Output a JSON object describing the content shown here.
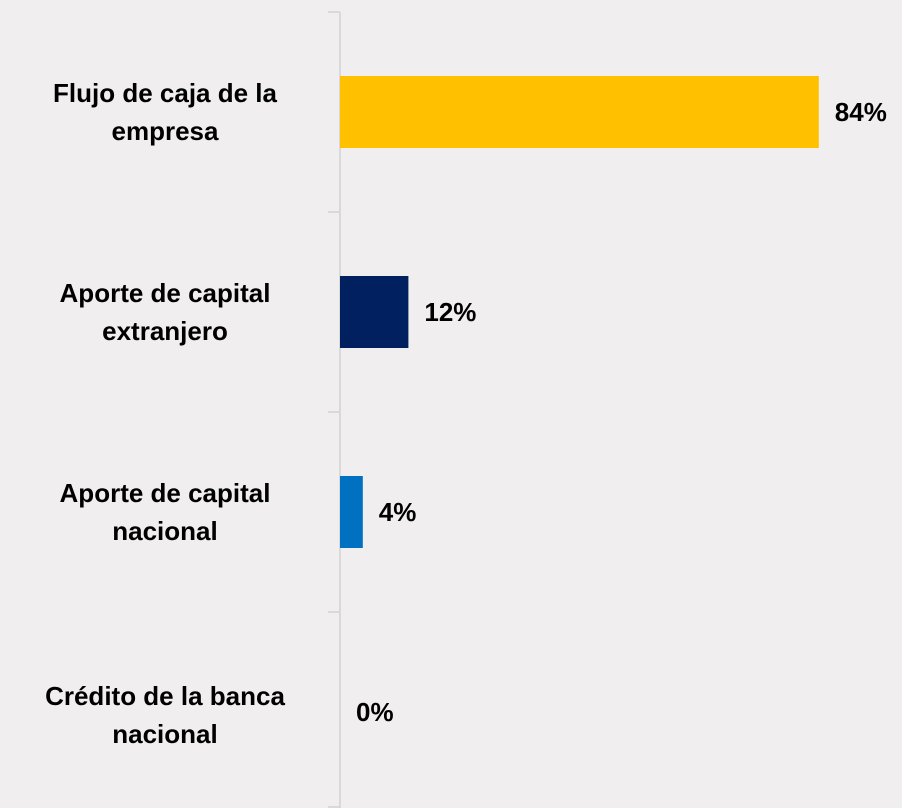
{
  "chart_data": {
    "type": "hbar",
    "categories": [
      "Flujo de caja de la empresa",
      "Aporte de capital extranjero",
      "Aporte de capital nacional",
      "Crédito de la banca nacional"
    ],
    "values": [
      84,
      12,
      4,
      0
    ],
    "value_labels": [
      "84%",
      "12%",
      "4%",
      "0%"
    ],
    "colors": [
      "#FFC000",
      "#002060",
      "#0070C0",
      "#7F7F7F"
    ],
    "xlim": [
      0,
      90
    ]
  }
}
